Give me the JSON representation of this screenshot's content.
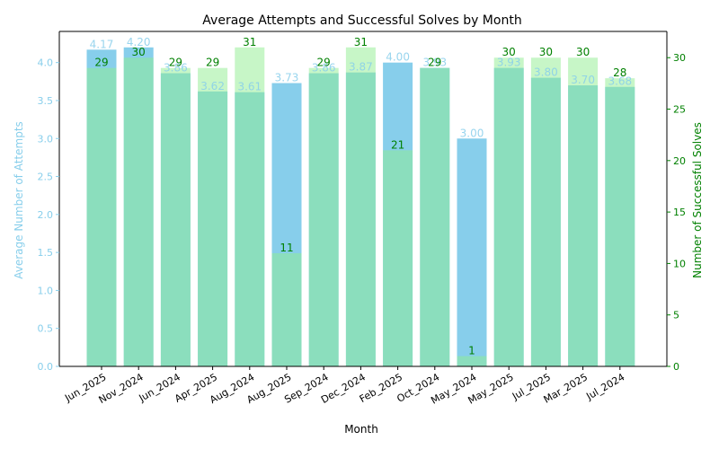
{
  "chart_data": {
    "type": "bar",
    "title": "Average Attempts and Successful Solves by Month",
    "xlabel": "Month",
    "categories": [
      "Jun_2025",
      "Nov_2024",
      "Jun_2024",
      "Apr_2025",
      "Aug_2024",
      "Aug_2025",
      "Sep_2024",
      "Dec_2024",
      "Feb_2025",
      "Oct_2024",
      "May_2024",
      "May_2025",
      "Jul_2025",
      "Mar_2025",
      "Jul_2024"
    ],
    "series": [
      {
        "axis": "left",
        "color": "#87ceeb",
        "values": [
          4.17,
          4.2,
          3.86,
          3.62,
          3.61,
          3.73,
          3.86,
          3.87,
          4.0,
          3.93,
          3.0,
          3.93,
          3.8,
          3.7,
          3.68
        ],
        "labels": [
          "4.17",
          "4.20",
          "3.86",
          "3.62",
          "3.61",
          "3.73",
          "3.86",
          "3.87",
          "4.00",
          "3.93",
          "3.00",
          "3.93",
          "3.80",
          "3.70",
          "3.68"
        ]
      },
      {
        "axis": "right",
        "color": "#90ee90",
        "values": [
          29,
          30,
          29,
          29,
          31,
          11,
          29,
          31,
          21,
          29,
          1,
          30,
          30,
          30,
          28
        ],
        "labels": [
          "29",
          "30",
          "29",
          "29",
          "31",
          "11",
          "29",
          "31",
          "21",
          "29",
          "1",
          "30",
          "30",
          "30",
          "28"
        ]
      }
    ],
    "left_axis": {
      "label": "Average Number of Attempts",
      "ylim": [
        0,
        4.41
      ],
      "ticks": [
        0,
        0.5,
        1.0,
        1.5,
        2.0,
        2.5,
        3.0,
        3.5,
        4.0
      ],
      "tick_labels": [
        "0.0",
        "0.5",
        "1.0",
        "1.5",
        "2.0",
        "2.5",
        "3.0",
        "3.5",
        "4.0"
      ],
      "color": "#87ceeb"
    },
    "right_axis": {
      "label": "Number of Successful Solves",
      "ylim": [
        0,
        32.55
      ],
      "ticks": [
        0,
        5,
        10,
        15,
        20,
        25,
        30
      ],
      "tick_labels": [
        "0",
        "5",
        "10",
        "15",
        "20",
        "25",
        "30"
      ],
      "color": "#008000"
    },
    "grid": false,
    "legend": "none"
  }
}
